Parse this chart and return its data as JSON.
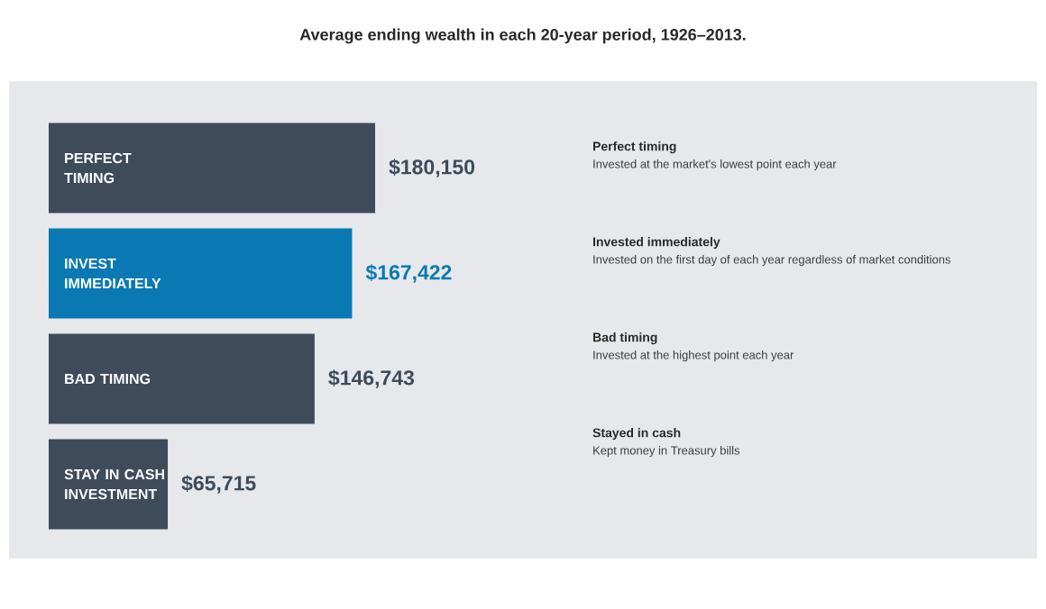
{
  "chart_data": {
    "type": "bar",
    "orientation": "horizontal",
    "title": "Average ending wealth in each 20-year period, 1926–2013.",
    "categories": [
      "PERFECT TIMING",
      "INVEST IMMEDIATELY",
      "BAD TIMING",
      "STAY IN CASH INVESTMENT"
    ],
    "values": [
      180150,
      167422,
      146743,
      65715
    ],
    "colors": [
      "#3d4b5b",
      "#0a79b3",
      "#3d4b5b",
      "#3d4b5b"
    ],
    "value_labels": [
      "$180,150",
      "$167,422",
      "$146,743",
      "$65,715"
    ],
    "annotations": [
      "Perfect timing",
      "Invested at the market's lowest point each year",
      "Invested immediately",
      "Invested on the first day of each year regardless of market conditions",
      "Bad timing",
      "Invested at the highest point each year",
      "Stayed in cash",
      "Kept money in Treasury bills"
    ]
  }
}
